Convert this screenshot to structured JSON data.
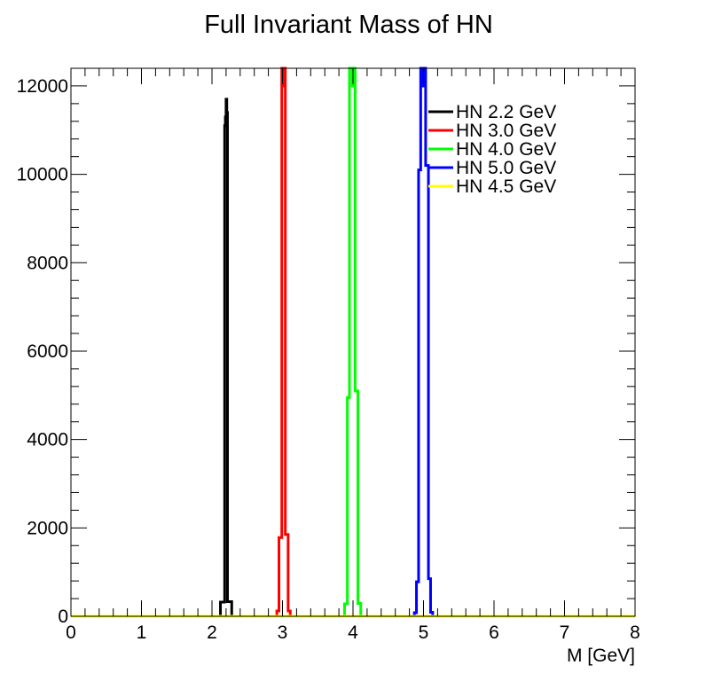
{
  "chart_data": {
    "type": "line",
    "title": "Full Invariant Mass of HN",
    "xlabel": "M [GeV]",
    "ylabel": "",
    "xlim": [
      0,
      8
    ],
    "ylim": [
      0,
      12400
    ],
    "x_ticks": [
      "0",
      "1",
      "2",
      "3",
      "4",
      "5",
      "6",
      "7",
      "8"
    ],
    "y_ticks": [
      "0",
      "2000",
      "4000",
      "6000",
      "8000",
      "10000",
      "12000"
    ],
    "legend_placement": "top-right",
    "grid": false,
    "series": [
      {
        "name": "HN 2.2 GeV",
        "color": "#000000",
        "points": [
          [
            0,
            0
          ],
          [
            2.1,
            0
          ],
          [
            2.12,
            0
          ],
          [
            2.12,
            320
          ],
          [
            2.18,
            320
          ],
          [
            2.18,
            11100
          ],
          [
            2.19,
            11100
          ],
          [
            2.19,
            11300
          ],
          [
            2.2,
            11300
          ],
          [
            2.2,
            11700
          ],
          [
            2.21,
            11700
          ],
          [
            2.21,
            11400
          ],
          [
            2.22,
            11400
          ],
          [
            2.22,
            330
          ],
          [
            2.28,
            330
          ],
          [
            2.28,
            0
          ],
          [
            8,
            0
          ]
        ]
      },
      {
        "name": "HN 3.0 GeV",
        "color": "#ff0000",
        "points": [
          [
            0,
            0
          ],
          [
            2.9,
            0
          ],
          [
            2.92,
            0
          ],
          [
            2.92,
            120
          ],
          [
            2.95,
            120
          ],
          [
            2.95,
            1780
          ],
          [
            2.99,
            1780
          ],
          [
            2.99,
            12400
          ],
          [
            3.01,
            12400
          ],
          [
            3.01,
            12000
          ],
          [
            3.02,
            12000
          ],
          [
            3.02,
            12400
          ],
          [
            3.04,
            12400
          ],
          [
            3.04,
            1850
          ],
          [
            3.08,
            1850
          ],
          [
            3.08,
            120
          ],
          [
            3.11,
            120
          ],
          [
            3.11,
            0
          ],
          [
            8,
            0
          ]
        ]
      },
      {
        "name": "HN 4.0 GeV",
        "color": "#00ff00",
        "points": [
          [
            0,
            0
          ],
          [
            3.85,
            0
          ],
          [
            3.88,
            0
          ],
          [
            3.88,
            280
          ],
          [
            3.92,
            280
          ],
          [
            3.92,
            4950
          ],
          [
            3.95,
            4950
          ],
          [
            3.95,
            12400
          ],
          [
            3.99,
            12400
          ],
          [
            3.99,
            12000
          ],
          [
            4.0,
            12000
          ],
          [
            4.0,
            12400
          ],
          [
            4.03,
            12400
          ],
          [
            4.03,
            5100
          ],
          [
            4.07,
            5100
          ],
          [
            4.07,
            290
          ],
          [
            4.11,
            290
          ],
          [
            4.11,
            0
          ],
          [
            8,
            0
          ]
        ]
      },
      {
        "name": "HN 5.0 GeV",
        "color": "#0000ff",
        "points": [
          [
            0,
            0
          ],
          [
            4.85,
            0
          ],
          [
            4.87,
            0
          ],
          [
            4.87,
            80
          ],
          [
            4.9,
            80
          ],
          [
            4.9,
            780
          ],
          [
            4.93,
            780
          ],
          [
            4.93,
            10100
          ],
          [
            4.96,
            10100
          ],
          [
            4.96,
            12400
          ],
          [
            4.99,
            12400
          ],
          [
            4.99,
            12000
          ],
          [
            5.0,
            12000
          ],
          [
            5.0,
            12400
          ],
          [
            5.03,
            12400
          ],
          [
            5.03,
            10200
          ],
          [
            5.07,
            10200
          ],
          [
            5.07,
            850
          ],
          [
            5.1,
            850
          ],
          [
            5.1,
            90
          ],
          [
            5.13,
            90
          ],
          [
            5.13,
            0
          ],
          [
            8,
            0
          ]
        ]
      },
      {
        "name": "HN 4.5 GeV",
        "color": "#ffff00",
        "points": [
          [
            0,
            0
          ],
          [
            8,
            0
          ]
        ]
      }
    ]
  }
}
